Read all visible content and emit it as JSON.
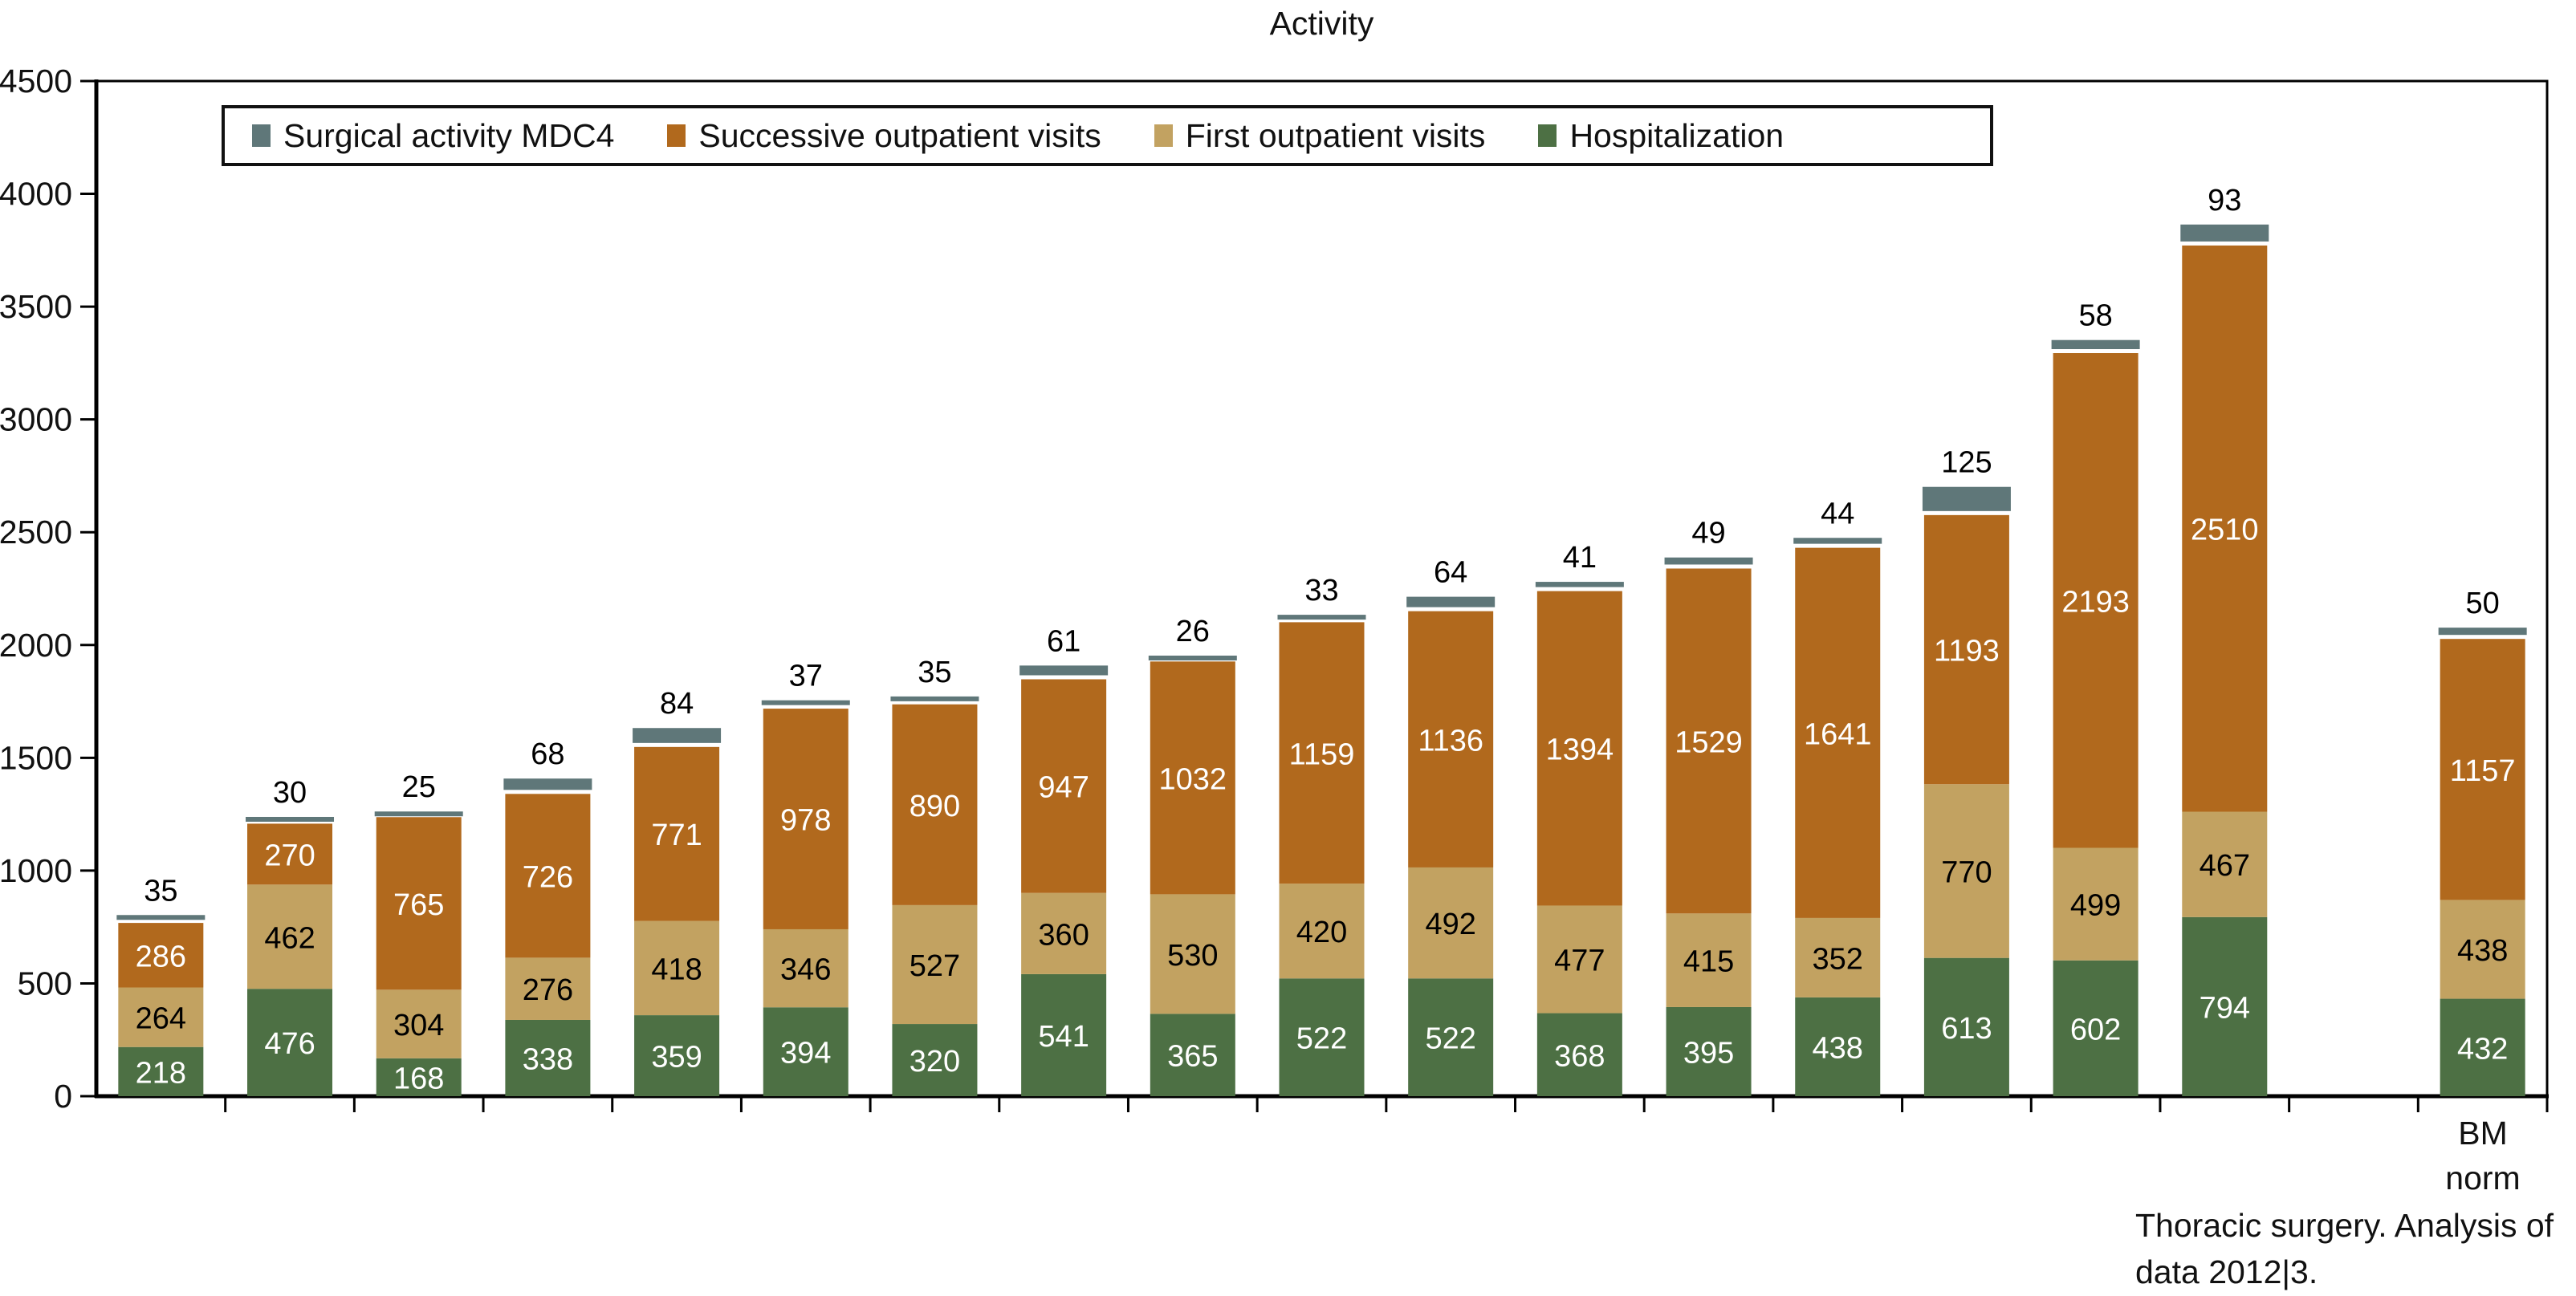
{
  "title": "Activity",
  "footnote": {
    "line1": "Thoracic surgery. Analysis of",
    "line2": "data 2012|3."
  },
  "chart_data": {
    "type": "bar",
    "stacked": true,
    "title": "Activity",
    "xlabel": "",
    "ylabel": "",
    "ylim": [
      0,
      4500
    ],
    "yticks": [
      0,
      500,
      1000,
      1500,
      2000,
      2500,
      3000,
      3500,
      4000,
      4500
    ],
    "grid": false,
    "legend_position": "top-left-inside-box",
    "series": [
      {
        "key": "hospitalization",
        "name": "Hospitalization",
        "color": "#4d7044",
        "label_color": "#ffffff",
        "label_inside": true
      },
      {
        "key": "first_outpatient_visits",
        "name": "First outpatient visits",
        "color": "#c2a261",
        "label_color": "#000000",
        "label_inside": true
      },
      {
        "key": "successive_outpatient_visits",
        "name": "Successive outpatient visits",
        "color": "#b1691d",
        "label_color": "#ffffff",
        "label_inside": true
      },
      {
        "key": "surgical_activity_mdc4",
        "name": "Surgical activity MDC4",
        "color": "#5f7779",
        "label_color": "#000000",
        "label_inside": false
      }
    ],
    "legend_display_order": [
      3,
      2,
      1,
      0
    ],
    "num_slots": 19,
    "bars": [
      {
        "slot": 0,
        "category": "",
        "values": [
          218,
          264,
          286,
          35
        ]
      },
      {
        "slot": 1,
        "category": "",
        "values": [
          476,
          462,
          270,
          30
        ]
      },
      {
        "slot": 2,
        "category": "",
        "values": [
          168,
          304,
          765,
          25
        ]
      },
      {
        "slot": 3,
        "category": "",
        "values": [
          338,
          276,
          726,
          68
        ]
      },
      {
        "slot": 4,
        "category": "",
        "values": [
          359,
          418,
          771,
          84
        ]
      },
      {
        "slot": 5,
        "category": "",
        "values": [
          394,
          346,
          978,
          37
        ]
      },
      {
        "slot": 6,
        "category": "",
        "values": [
          320,
          527,
          890,
          35
        ]
      },
      {
        "slot": 7,
        "category": "",
        "values": [
          541,
          360,
          947,
          61
        ]
      },
      {
        "slot": 8,
        "category": "",
        "values": [
          365,
          530,
          1032,
          26
        ]
      },
      {
        "slot": 9,
        "category": "",
        "values": [
          522,
          420,
          1159,
          33
        ]
      },
      {
        "slot": 10,
        "category": "",
        "values": [
          522,
          492,
          1136,
          64
        ]
      },
      {
        "slot": 11,
        "category": "",
        "values": [
          368,
          477,
          1394,
          41
        ]
      },
      {
        "slot": 12,
        "category": "",
        "values": [
          395,
          415,
          1529,
          49
        ]
      },
      {
        "slot": 13,
        "category": "",
        "values": [
          438,
          352,
          1641,
          44
        ]
      },
      {
        "slot": 14,
        "category": "",
        "values": [
          613,
          770,
          1193,
          125
        ]
      },
      {
        "slot": 15,
        "category": "",
        "values": [
          602,
          499,
          2193,
          58
        ]
      },
      {
        "slot": 16,
        "category": "",
        "values": [
          794,
          467,
          2510,
          93
        ]
      },
      {
        "slot": 18,
        "category": "BM norm",
        "values": [
          432,
          438,
          1157,
          50
        ]
      }
    ],
    "last_category_label_lines": [
      "BM",
      "norm"
    ]
  }
}
